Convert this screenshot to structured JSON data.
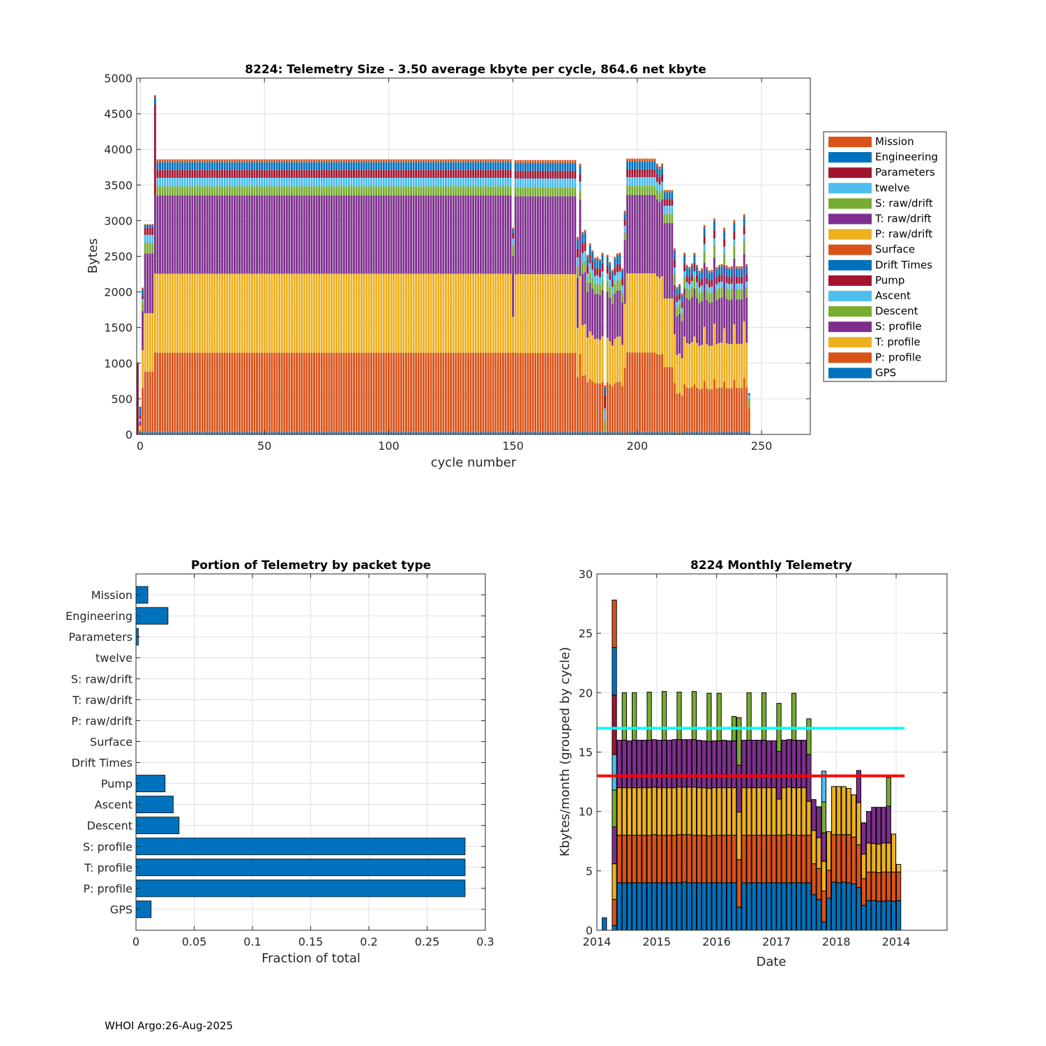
{
  "colors": {
    "palette": [
      "#0072BD",
      "#D95319",
      "#EDB120",
      "#7E2F8E",
      "#77AC30",
      "#4DBEEE",
      "#A2142F"
    ],
    "cyan_line": "#00FFFF",
    "red_line": "#FF0000",
    "grid": "#DFDFDF",
    "axis": "#262626"
  },
  "footer": "WHOI Argo:26-Aug-2025",
  "chart_data": [
    {
      "type": "bar",
      "stacked": true,
      "title": "8224: Telemetry Size - 3.50 average kbyte per cycle,  864.6 net kbyte",
      "xlabel": "cycle number",
      "ylabel": "Bytes",
      "xlim": [
        -1.4,
        269.6
      ],
      "ylim": [
        0,
        5000
      ],
      "xticks": [
        0,
        50,
        100,
        150,
        200,
        250
      ],
      "xtick_labels": [
        "0",
        "50",
        "100",
        "150",
        "200",
        "250"
      ],
      "yticks": [
        0,
        500,
        1000,
        1500,
        2000,
        2500,
        3000,
        3500,
        4000,
        4500,
        5000
      ],
      "ytick_labels": [
        "0",
        "500",
        "1000",
        "1500",
        "2000",
        "2500",
        "3000",
        "3500",
        "4000",
        "4500",
        "5000"
      ],
      "grid": true,
      "legend_placement": "outside-right",
      "series": [
        "GPS",
        "P: profile",
        "T: profile",
        "S: profile",
        "Descent",
        "Ascent",
        "Pump",
        "Drift Times",
        "Surface",
        "P: raw/drift",
        "T: raw/drift",
        "S: raw/drift",
        "twelve",
        "Parameters",
        "Engineering",
        "Mission"
      ],
      "legend_order": [
        "Mission",
        "Engineering",
        "Parameters",
        "twelve",
        "S: raw/drift",
        "T: raw/drift",
        "P: raw/drift",
        "Surface",
        "Drift Times",
        "Pump",
        "Ascent",
        "Descent",
        "S: profile",
        "T: profile",
        "P: profile",
        "GPS"
      ],
      "profiles": {
        "N": [
          30,
          1120,
          1110,
          1100,
          130,
          120,
          110,
          0,
          0,
          0,
          0,
          0,
          0,
          0,
          110,
          40
        ],
        "E": [
          30,
          850,
          820,
          840,
          150,
          110,
          100,
          0,
          0,
          0,
          0,
          0,
          0,
          0,
          40,
          10
        ],
        "X": [
          30,
          1120,
          1110,
          1100,
          0,
          0,
          1270,
          0,
          0,
          0,
          0,
          0,
          0,
          0,
          100,
          30
        ],
        "A": [
          0,
          0,
          0,
          0,
          0,
          0,
          990,
          0,
          0,
          0,
          0,
          0,
          0,
          0,
          20,
          0
        ],
        "B": [
          30,
          0,
          90,
          60,
          0,
          40,
          50,
          0,
          0,
          0,
          0,
          0,
          0,
          0,
          120,
          0
        ],
        "C": [
          30,
          620,
          530,
          550,
          130,
          40,
          40,
          0,
          0,
          0,
          0,
          0,
          0,
          0,
          90,
          30
        ],
        "V": [
          30,
          1120,
          500,
          850,
          150,
          100,
          80,
          0,
          0,
          0,
          0,
          0,
          0,
          0,
          50,
          20
        ],
        "M": [
          30,
          700,
          630,
          640,
          140,
          120,
          110,
          0,
          0,
          0,
          0,
          0,
          0,
          0,
          120,
          30
        ],
        "L": [
          30,
          640,
          640,
          640,
          150,
          80,
          100,
          0,
          0,
          0,
          0,
          0,
          0,
          0,
          120,
          30
        ],
        "H": [
          30,
          720,
          760,
          900,
          170,
          90,
          110,
          0,
          0,
          0,
          0,
          0,
          0,
          0,
          120,
          40
        ],
        "D": [
          30,
          950,
          1000,
          1100,
          130,
          120,
          100,
          0,
          0,
          0,
          0,
          0,
          0,
          0,
          100,
          30
        ],
        "S": [
          30,
          0,
          0,
          0,
          150,
          170,
          180,
          0,
          0,
          0,
          0,
          0,
          0,
          0,
          100,
          30
        ],
        "T": [
          30,
          340,
          0,
          0,
          130,
          50,
          0,
          0,
          0,
          0,
          0,
          0,
          0,
          0,
          30,
          0
        ]
      },
      "first_cycle": -1,
      "runs": [
        [
          "A",
          1,
          1010
        ],
        [
          "B",
          1,
          390
        ],
        [
          "C",
          1,
          2060
        ],
        [
          "E",
          4,
          2950
        ],
        [
          "X",
          1,
          4760
        ],
        [
          "N",
          143,
          3860
        ],
        [
          "V",
          1,
          2900
        ],
        [
          "N",
          25,
          3850
        ],
        [
          "M",
          1,
          2770
        ],
        [
          "N",
          1,
          3800
        ],
        [
          "M",
          1,
          2840
        ],
        [
          "M",
          1,
          2870
        ],
        [
          "M",
          1,
          2520
        ],
        [
          "M",
          1,
          2680
        ],
        [
          "M",
          1,
          2580
        ],
        [
          "M",
          1,
          2480
        ],
        [
          "M",
          1,
          2490
        ],
        [
          "M",
          1,
          2460
        ],
        [
          "M",
          1,
          2550
        ],
        [
          "S",
          1,
          690
        ],
        [
          "M",
          1,
          2520
        ],
        [
          "M",
          1,
          2420
        ],
        [
          "M",
          1,
          2310
        ],
        [
          "M",
          1,
          2490
        ],
        [
          "M",
          1,
          2540
        ],
        [
          "M",
          1,
          2550
        ],
        [
          "M",
          1,
          2330
        ],
        [
          "N",
          1,
          3140
        ],
        [
          "N",
          12,
          3870
        ],
        [
          "N",
          1,
          3800
        ],
        [
          "N",
          1,
          3760
        ],
        [
          "N",
          1,
          3800
        ],
        [
          "D",
          4,
          3430
        ],
        [
          "L",
          1,
          2610
        ],
        [
          "L",
          1,
          2070
        ],
        [
          "L",
          1,
          2110
        ],
        [
          "L",
          1,
          1980
        ],
        [
          "L",
          1,
          2550
        ],
        [
          "L",
          1,
          2380
        ],
        [
          "L",
          1,
          2350
        ],
        [
          "L",
          1,
          2400
        ],
        [
          "L",
          1,
          2550
        ],
        [
          "L",
          1,
          2380
        ],
        [
          "L",
          1,
          2300
        ],
        [
          "L",
          1,
          2330
        ],
        [
          "H",
          1,
          2940
        ],
        [
          "L",
          1,
          2350
        ],
        [
          "L",
          1,
          2300
        ],
        [
          "L",
          1,
          2310
        ],
        [
          "H",
          1,
          3030
        ],
        [
          "L",
          1,
          2350
        ],
        [
          "L",
          1,
          2380
        ],
        [
          "L",
          1,
          2390
        ],
        [
          "H",
          1,
          2900
        ],
        [
          "L",
          1,
          2370
        ],
        [
          "L",
          1,
          2350
        ],
        [
          "L",
          1,
          2360
        ],
        [
          "H",
          1,
          3010
        ],
        [
          "L",
          3,
          2360
        ],
        [
          "H",
          1,
          3090
        ],
        [
          "L",
          1,
          2390
        ],
        [
          "T",
          1,
          580
        ]
      ]
    },
    {
      "type": "bar",
      "orientation": "horizontal",
      "title": "Portion of Telemetry by packet type",
      "xlabel": "Fraction of total",
      "ylabel": "",
      "xlim": [
        0,
        0.3
      ],
      "xticks": [
        0,
        0.05,
        0.1,
        0.15,
        0.2,
        0.25,
        0.3
      ],
      "xtick_labels": [
        "0",
        "0.05",
        "0.1",
        "0.15",
        "0.2",
        "0.25",
        "0.3"
      ],
      "grid": true,
      "categories": [
        "Mission",
        "Engineering",
        "Parameters",
        "twelve",
        "S: raw/drift",
        "T: raw/drift",
        "P: raw/drift",
        "Surface",
        "Drift Times",
        "Pump",
        "Ascent",
        "Descent",
        "S: profile",
        "T: profile",
        "P: profile",
        "GPS"
      ],
      "values": [
        0.0102,
        0.0275,
        0.002,
        0,
        0,
        0,
        0,
        0,
        0,
        0.025,
        0.032,
        0.037,
        0.2826,
        0.2826,
        0.2826,
        0.013
      ]
    },
    {
      "type": "bar",
      "stacked": true,
      "title": "8224 Monthly Telemetry",
      "xlabel": "Date",
      "ylabel": "Kbytes/month (grouped by cycle)",
      "x_units": "months since Jan 2014",
      "xlim": [
        0,
        70.2
      ],
      "ylim": [
        0,
        30
      ],
      "xticks": [
        0,
        12,
        24,
        36,
        48,
        60
      ],
      "xtick_labels": [
        "2014",
        "2015",
        "2016",
        "2017",
        "2018",
        "2014"
      ],
      "yticks": [
        0,
        5,
        10,
        15,
        20,
        25,
        30
      ],
      "ytick_labels": [
        "0",
        "5",
        "10",
        "15",
        "20",
        "25",
        "30"
      ],
      "grid": true,
      "reference_lines": [
        {
          "name": "cyan-reference-line",
          "y": 17,
          "x": [
            0.1,
            61.7
          ],
          "color": "#00FFFF"
        },
        {
          "name": "red-reference-line",
          "y": 13,
          "x": [
            0.1,
            61.7
          ],
          "color": "#FF0000"
        }
      ],
      "months": [
        {
          "m": 1,
          "seg": [
            1.05
          ]
        },
        {
          "m": 3,
          "seg": [
            0.4,
            2.2,
            3.0,
            3.1,
            3.1,
            3.0,
            5.0,
            4.0,
            4.0
          ]
        },
        {
          "m": 4,
          "seg": [
            4,
            4,
            4,
            4
          ]
        },
        {
          "m": 5,
          "seg": [
            4,
            4,
            4,
            4,
            4
          ]
        },
        {
          "m": 6,
          "seg": [
            4,
            4,
            4,
            3.95
          ]
        },
        {
          "m": 7,
          "seg": [
            4,
            4,
            4,
            4,
            4
          ]
        },
        {
          "m": 8,
          "seg": [
            4,
            4,
            4,
            4
          ]
        },
        {
          "m": 9,
          "seg": [
            4,
            4,
            4,
            4
          ]
        },
        {
          "m": 10,
          "seg": [
            4,
            4,
            4,
            4,
            4.05
          ]
        },
        {
          "m": 11,
          "seg": [
            4,
            4.05,
            4,
            4
          ]
        },
        {
          "m": 12,
          "seg": [
            4,
            4,
            4,
            4
          ]
        },
        {
          "m": 13,
          "seg": [
            4,
            4,
            4,
            4,
            4.1
          ]
        },
        {
          "m": 14,
          "seg": [
            4,
            4,
            4,
            4
          ]
        },
        {
          "m": 15,
          "seg": [
            4,
            4,
            4,
            4.05
          ]
        },
        {
          "m": 16,
          "seg": [
            4,
            4.05,
            4,
            4,
            4
          ]
        },
        {
          "m": 17,
          "seg": [
            4.05,
            4,
            4,
            4
          ]
        },
        {
          "m": 18,
          "seg": [
            4,
            4.05,
            4,
            4
          ]
        },
        {
          "m": 19,
          "seg": [
            4,
            4,
            4.05,
            4,
            4.05
          ]
        },
        {
          "m": 20,
          "seg": [
            4,
            4,
            4,
            4
          ]
        },
        {
          "m": 21,
          "seg": [
            4,
            4,
            4,
            3.95
          ]
        },
        {
          "m": 22,
          "seg": [
            4,
            3.95,
            4,
            3.95,
            4.05
          ]
        },
        {
          "m": 23,
          "seg": [
            4,
            4,
            4,
            3.95
          ]
        },
        {
          "m": 24,
          "seg": [
            4,
            4,
            4,
            3.95,
            4
          ]
        },
        {
          "m": 25,
          "seg": [
            4,
            4,
            4,
            4
          ]
        },
        {
          "m": 26,
          "seg": [
            4,
            4,
            4,
            3.95
          ]
        },
        {
          "m": 27,
          "seg": [
            4,
            4,
            4,
            3.95,
            2.05
          ]
        },
        {
          "m": 28,
          "seg": [
            1.95,
            4,
            4,
            3.95,
            4
          ]
        },
        {
          "m": 29,
          "seg": [
            4,
            4,
            4,
            4
          ]
        },
        {
          "m": 30,
          "seg": [
            4,
            4,
            4,
            4,
            4
          ]
        },
        {
          "m": 31,
          "seg": [
            4,
            4,
            4,
            4
          ]
        },
        {
          "m": 32,
          "seg": [
            4,
            4,
            4,
            4
          ]
        },
        {
          "m": 33,
          "seg": [
            4,
            4,
            4,
            4,
            4
          ]
        },
        {
          "m": 34,
          "seg": [
            4,
            4,
            4,
            3.95
          ]
        },
        {
          "m": 35,
          "seg": [
            4,
            4,
            4,
            3.95
          ]
        },
        {
          "m": 36,
          "seg": [
            4,
            4,
            3.05,
            4,
            4.05
          ]
        },
        {
          "m": 37,
          "seg": [
            4,
            4,
            4,
            4
          ]
        },
        {
          "m": 38,
          "seg": [
            4,
            4.05,
            4,
            4
          ]
        },
        {
          "m": 39,
          "seg": [
            4,
            4,
            4,
            4,
            3.95
          ]
        },
        {
          "m": 40,
          "seg": [
            4,
            4,
            4,
            4
          ]
        },
        {
          "m": 41,
          "seg": [
            4,
            4,
            4,
            4
          ]
        },
        {
          "m": 42,
          "seg": [
            4,
            4,
            2.85,
            3.95,
            3.0
          ]
        },
        {
          "m": 43,
          "seg": [
            3.0,
            2.6,
            2.8,
            2.6
          ]
        },
        {
          "m": 44,
          "seg": [
            2.6,
            2.6,
            2.6,
            2.6
          ]
        },
        {
          "m": 45,
          "seg": [
            0.7,
            2.6,
            2.5,
            2.4,
            2.6,
            2.6
          ]
        },
        {
          "m": 46,
          "seg": [
            2.7,
            2.35,
            3.25
          ]
        },
        {
          "m": 47,
          "seg": [
            4.05,
            4,
            4.05
          ]
        },
        {
          "m": 48,
          "seg": [
            4,
            4.05,
            4.05
          ]
        },
        {
          "m": 49,
          "seg": [
            4.05,
            4,
            4.05
          ]
        },
        {
          "m": 50,
          "seg": [
            4,
            4.05,
            3.9
          ]
        },
        {
          "m": 51,
          "seg": [
            3.9,
            3.95,
            3.55
          ]
        },
        {
          "m": 52,
          "seg": [
            3.6,
            3.6,
            3.55,
            2.7
          ]
        },
        {
          "m": 53,
          "seg": [
            2.1,
            2.25,
            2.05,
            2.65
          ]
        },
        {
          "m": 54,
          "seg": [
            2.5,
            2.4,
            2.45,
            2.65
          ]
        },
        {
          "m": 55,
          "seg": [
            2.5,
            2.4,
            2.4,
            3.05
          ]
        },
        {
          "m": 56,
          "seg": [
            2.45,
            2.4,
            2.4,
            3.1
          ]
        },
        {
          "m": 57,
          "seg": [
            2.45,
            2.45,
            2.45,
            3.0
          ]
        },
        {
          "m": 58,
          "seg": [
            2.5,
            2.4,
            2.45,
            3.1,
            2.4
          ]
        },
        {
          "m": 59,
          "seg": [
            2.45,
            2.45,
            3.2
          ]
        },
        {
          "m": 60,
          "seg": [
            2.5,
            2.4,
            0.65
          ]
        }
      ]
    }
  ]
}
